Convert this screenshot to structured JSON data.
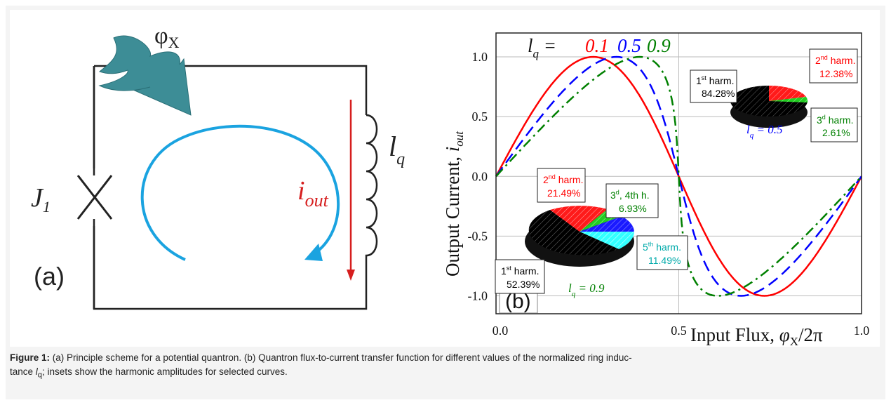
{
  "panel_a": {
    "flux_label": "φ",
    "flux_sub": "X",
    "junction_label": "J",
    "junction_sub": "1",
    "inductor_label": "l",
    "inductor_sub": "q",
    "current_label": "i",
    "current_sub": "out",
    "panel_tag": "(a)"
  },
  "panel_b": {
    "panel_tag": "(b)",
    "legend_prefix": "l",
    "legend_sub": "q",
    "legend_eq": " = ",
    "pie_top_label": "l",
    "pie_top_sub": "q",
    "pie_top_val": " = 0.5",
    "pie_bottom_label": "l",
    "pie_bottom_sub": "q",
    "pie_bottom_val": " = 0.9",
    "top_pie_boxes": [
      {
        "line1": "1",
        "sup": "st",
        "rest": " harm.",
        "line2": "84.28%",
        "color": "#000000"
      },
      {
        "line1": "2",
        "sup": "nd",
        "rest": " harm.",
        "line2": "12.38%",
        "color": "#ff0000"
      },
      {
        "line1": "3",
        "sup": "d",
        "rest": " harm.",
        "line2": "2.61%",
        "color": "#008000"
      }
    ],
    "bottom_pie_boxes": [
      {
        "line1": "2",
        "sup": "nd",
        "rest": " harm.",
        "line2": "21.49%",
        "color": "#ff0000"
      },
      {
        "line1": "3",
        "sup": "d",
        "rest": ", 4th h.",
        "line2": "6.93%",
        "color": "#008000"
      },
      {
        "line1": "1",
        "sup": "st",
        "rest": " harm.",
        "line2": "52.39%",
        "color": "#000000"
      },
      {
        "line1": "5",
        "sup": "th",
        "rest": " harm.",
        "line2": "11.49%",
        "color": "#00aaaa"
      }
    ]
  },
  "chart_data": {
    "type": "line",
    "xlabel": "Input Flux,  φX/2π",
    "ylabel": "Output Current,  iout",
    "xlim": [
      0,
      1
    ],
    "ylim": [
      -1.15,
      1.2
    ],
    "xticks": [
      "0.0",
      "0.5",
      "1.0"
    ],
    "yticks": [
      "-1.0",
      "-0.5",
      "0.0",
      "0.5",
      "1.0"
    ],
    "grid": true,
    "series": [
      {
        "name": "0.1",
        "color": "#ff0000",
        "dash": "solid",
        "lq": 0.1
      },
      {
        "name": "0.5",
        "color": "#0000ff",
        "dash": "dashed",
        "lq": 0.5
      },
      {
        "name": "0.9",
        "color": "#008000",
        "dash": "dashdot",
        "lq": 0.9
      }
    ]
  },
  "caption": {
    "label": "Figure 1:",
    "text": " (a) Principle scheme for a potential quantron. (b) Quantron flux-to-current transfer function for different values of the normalized ring induc-",
    "text2": "tance ",
    "sym": "l",
    "sym_sub": "q",
    "text3": "; insets show the harmonic amplitudes for selected curves."
  }
}
